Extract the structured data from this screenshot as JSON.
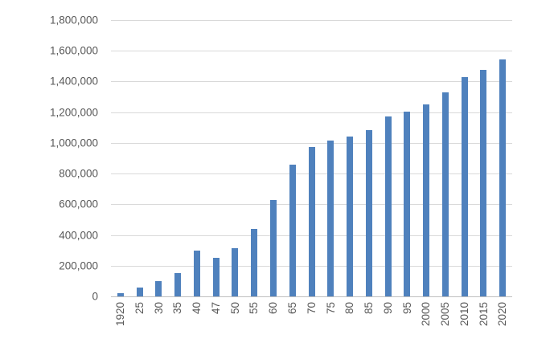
{
  "chart_data": {
    "type": "bar",
    "title": "",
    "categories": [
      "1920",
      "25",
      "30",
      "35",
      "40",
      "47",
      "50",
      "55",
      "60",
      "65",
      "70",
      "75",
      "80",
      "85",
      "90",
      "95",
      "2000",
      "2005",
      "2010",
      "2015",
      "2020"
    ],
    "values": [
      21000,
      60000,
      98000,
      150000,
      300000,
      251000,
      315000,
      439000,
      630000,
      858000,
      973000,
      1016000,
      1041000,
      1084000,
      1174000,
      1202000,
      1250000,
      1328000,
      1428000,
      1474000,
      1542000
    ],
    "ylim": [
      0,
      1800000
    ],
    "y_tick_step": 200000,
    "y_tick_labels": [
      "1,800,000",
      "1,600,000",
      "1,400,000",
      "1,200,000",
      "1,000,000",
      "800,000",
      "600,000",
      "400,000",
      "200,000",
      "0"
    ],
    "xlabel": "",
    "ylabel": "",
    "legend": "none",
    "grid": "horizontal",
    "colors": {
      "bar": "#4f81bd",
      "gridline": "#d9d9d9",
      "axis_line": "#bfbfbf",
      "tick_label": "#595959",
      "background": "#ffffff"
    }
  }
}
